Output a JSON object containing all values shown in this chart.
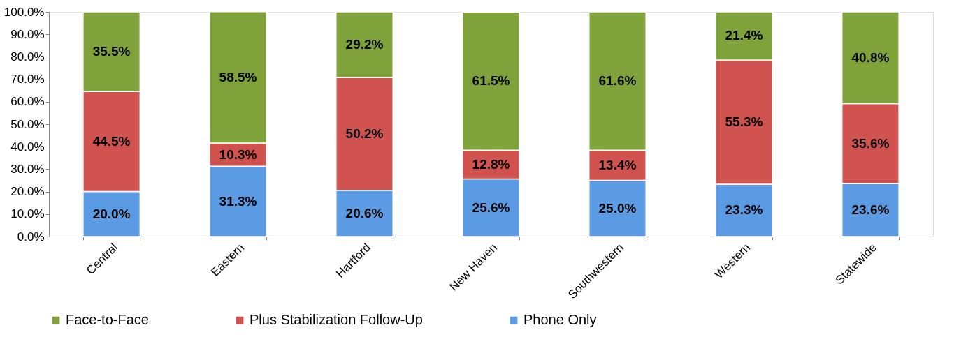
{
  "chart_data": {
    "type": "bar",
    "stacked": true,
    "legend": "bottom",
    "grid": false,
    "categories": [
      "Central",
      "Eastern",
      "Hartford",
      "New Haven",
      "Southwestern",
      "Western",
      "Statewide"
    ],
    "ylim": [
      0,
      100
    ],
    "yticks": [
      {
        "value": 0,
        "label": "0.0%"
      },
      {
        "value": 10,
        "label": "10.0%"
      },
      {
        "value": 20,
        "label": "20.0%"
      },
      {
        "value": 30,
        "label": "30.0%"
      },
      {
        "value": 40,
        "label": "40.0%"
      },
      {
        "value": 50,
        "label": "50.0%"
      },
      {
        "value": 60,
        "label": "60.0%"
      },
      {
        "value": 70,
        "label": "70.0%"
      },
      {
        "value": 80,
        "label": "80.0%"
      },
      {
        "value": 90,
        "label": "90.0%"
      },
      {
        "value": 100,
        "label": "100.0%"
      }
    ],
    "series": [
      {
        "name": "Phone Only",
        "color": "#5b9be3",
        "values": [
          20.0,
          31.3,
          20.6,
          25.6,
          25.0,
          23.3,
          23.6
        ],
        "value_labels": [
          "20.0%",
          "31.3%",
          "20.6%",
          "25.6%",
          "25.0%",
          "23.3%",
          "23.6%"
        ]
      },
      {
        "name": "Plus Stabilization Follow-Up",
        "color": "#d0534f",
        "values": [
          44.5,
          10.3,
          50.2,
          12.8,
          13.4,
          55.3,
          35.6
        ],
        "value_labels": [
          "44.5%",
          "10.3%",
          "50.2%",
          "12.8%",
          "13.4%",
          "55.3%",
          "35.6%"
        ]
      },
      {
        "name": "Face-to-Face",
        "color": "#7fa23a",
        "values": [
          35.5,
          58.5,
          29.2,
          61.5,
          61.6,
          21.4,
          40.8
        ],
        "value_labels": [
          "35.5%",
          "58.5%",
          "29.2%",
          "61.5%",
          "61.6%",
          "21.4%",
          "40.8%"
        ]
      }
    ]
  }
}
